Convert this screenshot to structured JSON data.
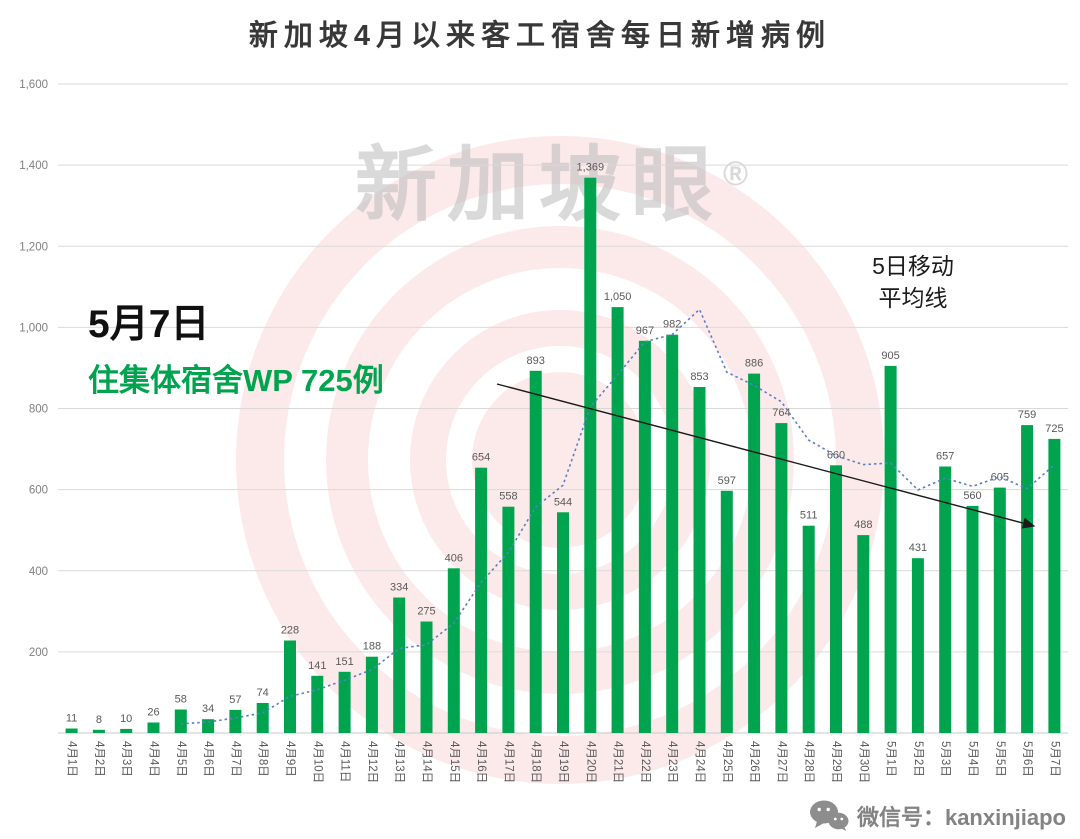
{
  "title": "新加坡4月以来客工宿舍每日新增病例",
  "watermark": {
    "text": "新加坡眼",
    "reg": "®"
  },
  "annotations": {
    "date_label": "5月7日",
    "detail_label": "住集体宿舍WP 725例",
    "ma_label_line1": "5日移动",
    "ma_label_line2": "平均线"
  },
  "footer": {
    "wechat_label": "微信号：kanxinjiapo"
  },
  "chart_data": {
    "type": "bar",
    "title": "新加坡4月以来客工宿舍每日新增病例",
    "categories": [
      "4月1日",
      "4月2日",
      "4月3日",
      "4月4日",
      "4月5日",
      "4月6日",
      "4月7日",
      "4月8日",
      "4月9日",
      "4月10日",
      "4月11日",
      "4月12日",
      "4月13日",
      "4月14日",
      "4月15日",
      "4月16日",
      "4月17日",
      "4月18日",
      "4月19日",
      "4月20日",
      "4月21日",
      "4月22日",
      "4月23日",
      "4月24日",
      "4月25日",
      "4月26日",
      "4月27日",
      "4月28日",
      "4月29日",
      "4月30日",
      "5月1日",
      "5月2日",
      "5月3日",
      "5月4日",
      "5月5日",
      "5月6日",
      "5月7日"
    ],
    "values": [
      11,
      8,
      10,
      26,
      58,
      34,
      57,
      74,
      228,
      141,
      151,
      188,
      334,
      275,
      406,
      654,
      558,
      893,
      544,
      1369,
      1050,
      967,
      982,
      853,
      597,
      886,
      764,
      511,
      660,
      488,
      905,
      431,
      657,
      560,
      605,
      759,
      725
    ],
    "ylim": [
      0,
      1600
    ],
    "yticks": [
      200,
      400,
      600,
      800,
      1000,
      1200,
      1400,
      1600
    ],
    "grid": true,
    "bar_color": "#00a44f",
    "value_label_color": "#595959",
    "axis_label_color": "#808080",
    "moving_average": {
      "window": 5,
      "name": "5日移动平均线",
      "style": "dotted",
      "color": "#5b7fc4"
    }
  }
}
